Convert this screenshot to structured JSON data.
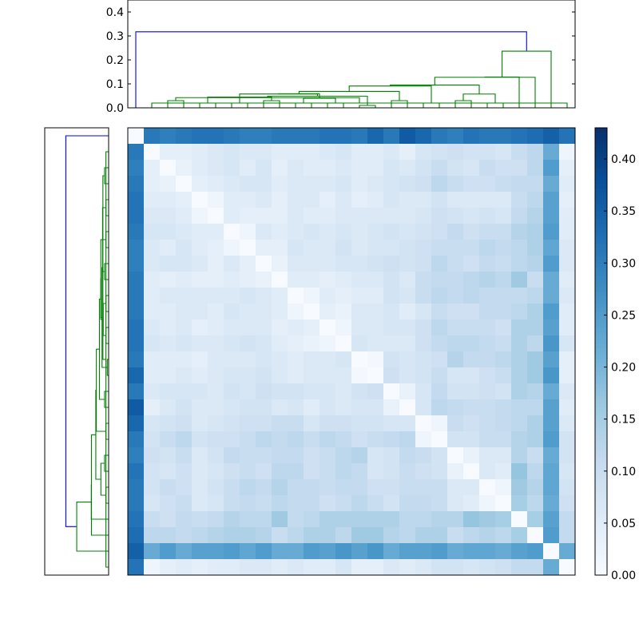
{
  "chart_data": {
    "type": "heatmap",
    "title": "",
    "xlabel": "",
    "ylabel": "",
    "n": 28,
    "order": [
      0,
      26,
      25,
      24,
      23,
      22,
      21,
      20,
      19,
      18,
      17,
      16,
      15,
      14,
      13,
      12,
      11,
      10,
      9,
      8,
      7,
      6,
      5,
      4,
      3,
      2,
      1,
      27
    ],
    "distance_matrix": [
      [
        0,
        0.35,
        0.33,
        0.32,
        0.31,
        0.31,
        0.32,
        0.3,
        0.31,
        0.34,
        0.36,
        0.31,
        0.34,
        0.31,
        0.32,
        0.32,
        0.31,
        0.31,
        0.31,
        0.3,
        0.3,
        0.31,
        0.32,
        0.32,
        0.31,
        0.3,
        0.31,
        0.32
      ],
      [
        0.35,
        0,
        0.25,
        0.24,
        0.22,
        0.23,
        0.23,
        0.22,
        0.25,
        0.24,
        0.24,
        0.22,
        0.26,
        0.24,
        0.26,
        0.24,
        0.25,
        0.22,
        0.22,
        0.25,
        0.23,
        0.25,
        0.24,
        0.24,
        0.22,
        0.25,
        0.22,
        0.22
      ],
      [
        0.33,
        0.25,
        0,
        0.15,
        0.12,
        0.13,
        0.12,
        0.1,
        0.14,
        0.14,
        0.12,
        0.13,
        0.16,
        0.16,
        0.12,
        0.14,
        0.14,
        0.12,
        0.1,
        0.13,
        0.14,
        0.14,
        0.13,
        0.12,
        0.11,
        0.12,
        0.12,
        0.11
      ],
      [
        0.32,
        0.24,
        0.15,
        0,
        0.15,
        0.16,
        0.17,
        0.13,
        0.13,
        0.12,
        0.12,
        0.14,
        0.14,
        0.14,
        0.14,
        0.14,
        0.12,
        0.11,
        0.16,
        0.12,
        0.12,
        0.13,
        0.11,
        0.1,
        0.11,
        0.09,
        0.1,
        0.11
      ],
      [
        0.31,
        0.22,
        0.12,
        0.15,
        0,
        0.02,
        0.05,
        0.06,
        0.1,
        0.11,
        0.11,
        0.08,
        0.1,
        0.12,
        0.1,
        0.09,
        0.11,
        0.11,
        0.12,
        0.1,
        0.11,
        0.1,
        0.07,
        0.06,
        0.1,
        0.09,
        0.07,
        0.09
      ],
      [
        0.31,
        0.23,
        0.13,
        0.16,
        0.02,
        0,
        0.06,
        0.06,
        0.1,
        0.1,
        0.1,
        0.09,
        0.09,
        0.11,
        0.11,
        0.1,
        0.11,
        0.11,
        0.13,
        0.11,
        0.12,
        0.1,
        0.08,
        0.06,
        0.09,
        0.1,
        0.08,
        0.08
      ],
      [
        0.32,
        0.23,
        0.12,
        0.17,
        0.05,
        0.06,
        0,
        0.03,
        0.08,
        0.09,
        0.1,
        0.08,
        0.07,
        0.11,
        0.12,
        0.1,
        0.09,
        0.12,
        0.12,
        0.09,
        0.1,
        0.09,
        0.07,
        0.06,
        0.09,
        0.07,
        0.08,
        0.07
      ],
      [
        0.3,
        0.22,
        0.1,
        0.13,
        0.06,
        0.06,
        0.03,
        0,
        0.08,
        0.1,
        0.11,
        0.08,
        0.07,
        0.13,
        0.12,
        0.1,
        0.09,
        0.11,
        0.11,
        0.1,
        0.1,
        0.11,
        0.08,
        0.06,
        0.1,
        0.08,
        0.09,
        0.08
      ],
      [
        0.31,
        0.25,
        0.14,
        0.13,
        0.1,
        0.1,
        0.08,
        0.08,
        0,
        0.02,
        0.12,
        0.11,
        0.1,
        0.09,
        0.11,
        0.12,
        0.1,
        0.12,
        0.11,
        0.12,
        0.1,
        0.09,
        0.09,
        0.08,
        0.12,
        0.1,
        0.08,
        0.08
      ],
      [
        0.34,
        0.24,
        0.14,
        0.12,
        0.11,
        0.1,
        0.09,
        0.1,
        0.02,
        0,
        0.07,
        0.07,
        0.08,
        0.08,
        0.09,
        0.09,
        0.07,
        0.1,
        0.1,
        0.09,
        0.09,
        0.08,
        0.07,
        0.06,
        0.09,
        0.08,
        0.07,
        0.06
      ],
      [
        0.36,
        0.24,
        0.12,
        0.12,
        0.11,
        0.1,
        0.1,
        0.11,
        0.12,
        0.07,
        0,
        0.03,
        0.07,
        0.07,
        0.06,
        0.07,
        0.05,
        0.07,
        0.06,
        0.08,
        0.08,
        0.07,
        0.06,
        0.06,
        0.08,
        0.06,
        0.04,
        0.05
      ],
      [
        0.31,
        0.22,
        0.13,
        0.14,
        0.08,
        0.09,
        0.08,
        0.08,
        0.11,
        0.07,
        0.03,
        0,
        0.09,
        0.08,
        0.06,
        0.07,
        0.07,
        0.08,
        0.08,
        0.09,
        0.07,
        0.08,
        0.06,
        0.07,
        0.07,
        0.07,
        0.06,
        0.06
      ],
      [
        0.34,
        0.26,
        0.16,
        0.14,
        0.1,
        0.09,
        0.07,
        0.07,
        0.1,
        0.08,
        0.07,
        0.09,
        0,
        0.01,
        0.06,
        0.06,
        0.06,
        0.05,
        0.06,
        0.08,
        0.07,
        0.07,
        0.06,
        0.05,
        0.06,
        0.05,
        0.05,
        0.04
      ],
      [
        0.31,
        0.24,
        0.16,
        0.14,
        0.12,
        0.11,
        0.11,
        0.13,
        0.09,
        0.08,
        0.07,
        0.08,
        0.01,
        0,
        0.07,
        0.06,
        0.06,
        0.05,
        0.06,
        0.07,
        0.06,
        0.06,
        0.06,
        0.04,
        0.05,
        0.05,
        0.05,
        0.04
      ],
      [
        0.32,
        0.26,
        0.12,
        0.14,
        0.1,
        0.11,
        0.12,
        0.12,
        0.11,
        0.09,
        0.06,
        0.06,
        0.06,
        0.07,
        0,
        0.02,
        0.03,
        0.04,
        0.05,
        0.07,
        0.08,
        0.07,
        0.06,
        0.06,
        0.07,
        0.06,
        0.07,
        0.07
      ],
      [
        0.32,
        0.24,
        0.14,
        0.14,
        0.09,
        0.1,
        0.1,
        0.1,
        0.12,
        0.09,
        0.07,
        0.07,
        0.06,
        0.06,
        0.02,
        0,
        0.04,
        0.05,
        0.04,
        0.06,
        0.06,
        0.06,
        0.05,
        0.04,
        0.06,
        0.05,
        0.06,
        0.05
      ],
      [
        0.31,
        0.25,
        0.14,
        0.12,
        0.11,
        0.11,
        0.09,
        0.09,
        0.1,
        0.07,
        0.05,
        0.07,
        0.06,
        0.06,
        0.03,
        0.04,
        0,
        0.02,
        0.05,
        0.06,
        0.06,
        0.07,
        0.05,
        0.06,
        0.06,
        0.05,
        0.05,
        0.05
      ],
      [
        0.31,
        0.22,
        0.12,
        0.11,
        0.11,
        0.11,
        0.12,
        0.11,
        0.12,
        0.1,
        0.07,
        0.08,
        0.05,
        0.05,
        0.04,
        0.05,
        0.02,
        0,
        0.05,
        0.06,
        0.07,
        0.06,
        0.06,
        0.06,
        0.06,
        0.06,
        0.05,
        0.06
      ],
      [
        0.31,
        0.22,
        0.1,
        0.16,
        0.12,
        0.13,
        0.12,
        0.11,
        0.11,
        0.1,
        0.06,
        0.08,
        0.06,
        0.06,
        0.05,
        0.04,
        0.05,
        0.05,
        0,
        0.03,
        0.04,
        0.05,
        0.04,
        0.04,
        0.05,
        0.04,
        0.05,
        0.05
      ],
      [
        0.3,
        0.25,
        0.13,
        0.12,
        0.1,
        0.11,
        0.09,
        0.1,
        0.12,
        0.09,
        0.08,
        0.09,
        0.08,
        0.07,
        0.07,
        0.06,
        0.06,
        0.06,
        0.03,
        0,
        0.04,
        0.06,
        0.04,
        0.06,
        0.07,
        0.07,
        0.06,
        0.06
      ],
      [
        0.3,
        0.23,
        0.14,
        0.12,
        0.11,
        0.12,
        0.1,
        0.1,
        0.1,
        0.09,
        0.08,
        0.07,
        0.07,
        0.06,
        0.08,
        0.06,
        0.06,
        0.07,
        0.04,
        0.04,
        0,
        0.02,
        0.04,
        0.05,
        0.07,
        0.05,
        0.06,
        0.06
      ],
      [
        0.31,
        0.25,
        0.14,
        0.13,
        0.1,
        0.1,
        0.09,
        0.11,
        0.09,
        0.08,
        0.07,
        0.08,
        0.07,
        0.06,
        0.07,
        0.06,
        0.07,
        0.06,
        0.05,
        0.06,
        0.02,
        0,
        0.05,
        0.05,
        0.06,
        0.07,
        0.07,
        0.05
      ],
      [
        0.32,
        0.24,
        0.13,
        0.11,
        0.07,
        0.08,
        0.07,
        0.08,
        0.09,
        0.07,
        0.06,
        0.06,
        0.06,
        0.06,
        0.06,
        0.05,
        0.05,
        0.06,
        0.04,
        0.04,
        0.04,
        0.05,
        0,
        0.02,
        0.05,
        0.06,
        0.06,
        0.05
      ],
      [
        0.32,
        0.24,
        0.12,
        0.1,
        0.06,
        0.06,
        0.06,
        0.06,
        0.08,
        0.06,
        0.06,
        0.07,
        0.05,
        0.04,
        0.06,
        0.04,
        0.06,
        0.06,
        0.04,
        0.06,
        0.05,
        0.05,
        0.02,
        0,
        0.04,
        0.05,
        0.05,
        0.04
      ],
      [
        0.31,
        0.22,
        0.11,
        0.11,
        0.1,
        0.09,
        0.09,
        0.1,
        0.12,
        0.09,
        0.08,
        0.07,
        0.06,
        0.05,
        0.07,
        0.06,
        0.06,
        0.06,
        0.05,
        0.07,
        0.07,
        0.06,
        0.05,
        0.04,
        0,
        0.03,
        0.04,
        0.05
      ],
      [
        0.3,
        0.25,
        0.12,
        0.09,
        0.09,
        0.1,
        0.07,
        0.08,
        0.1,
        0.08,
        0.06,
        0.07,
        0.05,
        0.05,
        0.06,
        0.05,
        0.05,
        0.06,
        0.04,
        0.07,
        0.05,
        0.07,
        0.06,
        0.05,
        0.03,
        0,
        0.04,
        0.04
      ],
      [
        0.31,
        0.22,
        0.12,
        0.1,
        0.07,
        0.08,
        0.08,
        0.09,
        0.08,
        0.07,
        0.04,
        0.06,
        0.05,
        0.05,
        0.07,
        0.06,
        0.05,
        0.05,
        0.05,
        0.06,
        0.06,
        0.07,
        0.06,
        0.05,
        0.04,
        0.04,
        0,
        0.02
      ],
      [
        0.32,
        0.22,
        0.11,
        0.11,
        0.09,
        0.08,
        0.07,
        0.08,
        0.08,
        0.06,
        0.05,
        0.06,
        0.04,
        0.04,
        0.07,
        0.05,
        0.05,
        0.06,
        0.05,
        0.06,
        0.06,
        0.05,
        0.05,
        0.04,
        0.05,
        0.04,
        0.02,
        0
      ]
    ],
    "colorbar": {
      "range": [
        0,
        0.43
      ],
      "ticks": [
        "0.00",
        "0.05",
        "0.10",
        "0.15",
        "0.20",
        "0.25",
        "0.30",
        "0.35",
        "0.40"
      ],
      "colormap": "Blues"
    },
    "dendrogram_top": {
      "ylim": [
        0,
        0.45
      ],
      "ticks": [
        "0.0",
        "0.1",
        "0.2",
        "0.3",
        "0.4"
      ]
    },
    "dendrogram_left": {
      "ylim": [
        0,
        0.45
      ]
    },
    "dendrogram_colors": {
      "above_threshold": "#0000ff",
      "cluster": "#008000"
    }
  }
}
